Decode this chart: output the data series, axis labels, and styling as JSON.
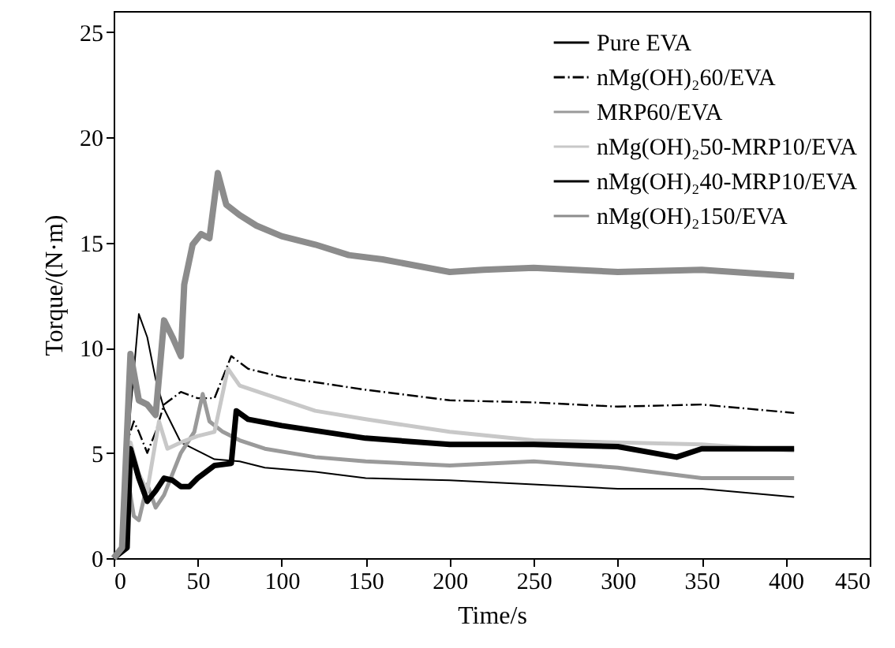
{
  "chart_data": {
    "type": "line",
    "xlabel": "Time/s",
    "ylabel": "Torque/(N·m)",
    "xlim": [
      0,
      450
    ],
    "xticks": [
      0,
      50,
      100,
      150,
      200,
      250,
      300,
      350,
      400,
      450
    ],
    "ylim": [
      0,
      26
    ],
    "yticks": [
      0,
      5,
      10,
      15,
      20,
      25
    ],
    "grid": false,
    "legend": "top right",
    "marker": "none",
    "series": [
      {
        "name": "Pure EVA",
        "color": "#000000",
        "line_style": "solid",
        "x": [
          0,
          5,
          10,
          15,
          20,
          25,
          30,
          40,
          50,
          60,
          75,
          90,
          120,
          150,
          200,
          250,
          300,
          350,
          405
        ],
        "values": [
          0,
          0.3,
          7,
          11.6,
          10.5,
          8.5,
          7.1,
          5.5,
          5.1,
          4.7,
          4.6,
          4.3,
          4.1,
          3.8,
          3.7,
          3.5,
          3.3,
          3.3,
          2.9
        ]
      },
      {
        "name": "nMg(OH)₂60/EVA",
        "color": "#000000",
        "line_style": "dashed",
        "x": [
          0,
          5,
          8,
          12,
          15,
          20,
          25,
          30,
          40,
          50,
          60,
          70,
          80,
          100,
          150,
          200,
          250,
          300,
          350,
          405
        ],
        "values": [
          0,
          0.3,
          5.5,
          6.5,
          6.0,
          5.0,
          6.0,
          7.3,
          7.9,
          7.6,
          7.6,
          9.6,
          9.0,
          8.6,
          8.0,
          7.5,
          7.4,
          7.2,
          7.3,
          6.9
        ]
      },
      {
        "name": "MRP60/EVA",
        "color": "#9a9a9a",
        "line_style": "solid",
        "x": [
          0,
          5,
          8,
          12,
          15,
          20,
          25,
          30,
          40,
          48,
          53,
          57,
          65,
          75,
          90,
          120,
          150,
          200,
          250,
          300,
          350,
          405
        ],
        "values": [
          0,
          0.3,
          4,
          2,
          1.8,
          3.5,
          2.4,
          3,
          5,
          6,
          7.8,
          6.5,
          6.0,
          5.6,
          5.2,
          4.8,
          4.6,
          4.4,
          4.6,
          4.3,
          3.8,
          3.8
        ]
      },
      {
        "name": "nMg(OH)₂50-MRP10/EVA",
        "color": "#c8c8c8",
        "line_style": "solid",
        "x": [
          0,
          5,
          10,
          15,
          20,
          27,
          32,
          40,
          50,
          60,
          68,
          75,
          90,
          120,
          150,
          200,
          250,
          300,
          350,
          405
        ],
        "values": [
          0,
          0.3,
          5.5,
          4,
          3.2,
          6.5,
          5.2,
          5.5,
          5.8,
          6.0,
          9.0,
          8.2,
          7.8,
          7.0,
          6.6,
          6.0,
          5.6,
          5.5,
          5.4,
          5.1
        ]
      },
      {
        "name": "nMg(OH)₂40-MRP10/EVA",
        "color": "#000000",
        "line_style": "solid",
        "x": [
          0,
          8,
          10,
          15,
          20,
          25,
          30,
          35,
          40,
          45,
          50,
          60,
          70,
          73,
          80,
          100,
          150,
          200,
          250,
          300,
          335,
          350,
          405
        ],
        "values": [
          0,
          0.5,
          5.2,
          3.8,
          2.7,
          3.2,
          3.8,
          3.7,
          3.4,
          3.4,
          3.8,
          4.4,
          4.5,
          7.0,
          6.6,
          6.3,
          5.7,
          5.4,
          5.4,
          5.3,
          4.8,
          5.2,
          5.2
        ]
      },
      {
        "name": "nMg(OH)₂150/EVA",
        "color": "#8c8c8c",
        "line_style": "solid",
        "x": [
          0,
          5,
          10,
          15,
          20,
          25,
          30,
          35,
          40,
          42,
          47,
          52,
          57,
          62,
          67,
          75,
          85,
          100,
          120,
          140,
          160,
          180,
          200,
          220,
          250,
          300,
          350,
          405
        ],
        "values": [
          0,
          0.5,
          9.7,
          7.5,
          7.3,
          6.8,
          11.3,
          10.5,
          9.6,
          13,
          14.9,
          15.4,
          15.2,
          18.3,
          16.8,
          16.3,
          15.8,
          15.3,
          14.9,
          14.4,
          14.2,
          13.9,
          13.6,
          13.7,
          13.8,
          13.6,
          13.7,
          13.4
        ]
      }
    ]
  }
}
